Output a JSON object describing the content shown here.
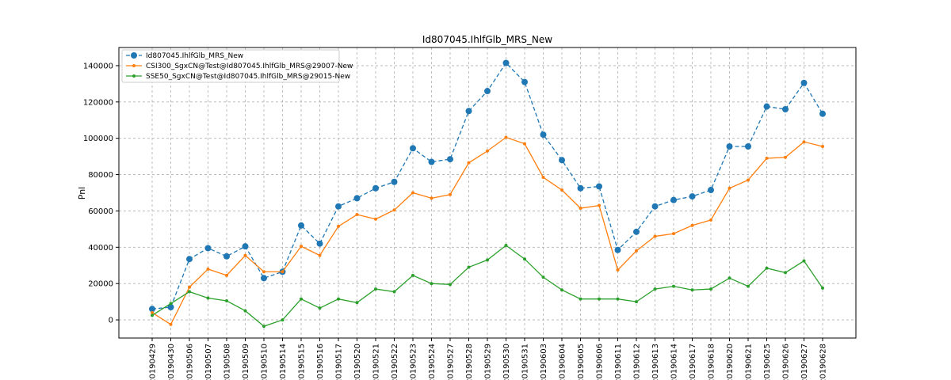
{
  "chart_data": {
    "type": "line",
    "title": "Id807045.IhlfGlb_MRS_New",
    "xlabel": "",
    "ylabel": "Pnl",
    "ylim": [
      -10000,
      150000
    ],
    "yticks": [
      0,
      20000,
      40000,
      60000,
      80000,
      100000,
      120000,
      140000
    ],
    "grid": true,
    "legend_position": "top-left",
    "categories": [
      "20190429",
      "20190430",
      "20190506",
      "20190507",
      "20190508",
      "20190509",
      "20190510",
      "20190514",
      "20190515",
      "20190516",
      "20190517",
      "20190520",
      "20190521",
      "20190522",
      "20190523",
      "20190524",
      "20190527",
      "20190528",
      "20190529",
      "20190530",
      "20190531",
      "20190603",
      "20190604",
      "20190605",
      "20190606",
      "20190611",
      "20190612",
      "20190613",
      "20190614",
      "20190617",
      "20190618",
      "20190620",
      "20190621",
      "20190625",
      "20190626",
      "20190627",
      "20190628"
    ],
    "series": [
      {
        "name": "Id807045.IhlfGlb_MRS_New",
        "color": "#1f77b4",
        "style": "dashed",
        "marker": "large-circle",
        "values": [
          6000,
          7000,
          33500,
          39500,
          35000,
          40500,
          23000,
          26500,
          52000,
          42000,
          62500,
          67000,
          72500,
          76000,
          94500,
          87000,
          88500,
          115000,
          126000,
          141500,
          131000,
          102000,
          88000,
          72500,
          73500,
          38500,
          48500,
          62500,
          66000,
          68000,
          71500,
          95500,
          95500,
          117500,
          116000,
          130500,
          113500
        ]
      },
      {
        "name": "CSI300_SgxCN@Test@Id807045.IhlfGlb_MRS@29007-New",
        "color": "#ff7f0e",
        "style": "solid",
        "marker": "small-circle",
        "values": [
          4000,
          -2500,
          18000,
          28000,
          24500,
          35500,
          26500,
          26500,
          40500,
          35500,
          51500,
          58000,
          55500,
          60500,
          70000,
          67000,
          69000,
          86500,
          93000,
          100500,
          97000,
          78500,
          71500,
          61500,
          63000,
          27500,
          38000,
          46000,
          47500,
          52000,
          55000,
          72500,
          77000,
          89000,
          89500,
          98000,
          95500
        ]
      },
      {
        "name": "SSE50_SgxCN@Test@Id807045.IhlfGlb_MRS@29015-New",
        "color": "#2ca02c",
        "style": "solid",
        "marker": "small-circle",
        "values": [
          2500,
          9000,
          15500,
          12000,
          10500,
          5000,
          -3500,
          0,
          11500,
          6500,
          11500,
          9500,
          17000,
          15500,
          24500,
          20000,
          19500,
          29000,
          33000,
          41000,
          33500,
          23500,
          16500,
          11500,
          11500,
          11500,
          10000,
          17000,
          18500,
          16500,
          17000,
          23000,
          18500,
          28500,
          26000,
          32500,
          17500
        ]
      }
    ]
  }
}
